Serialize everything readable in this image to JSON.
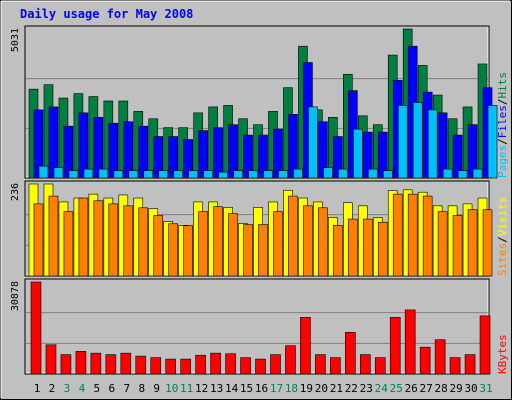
{
  "title": "Daily usage for May 2008",
  "colors": {
    "background": "#C0C0C0",
    "title": "#0000FF",
    "hits": "#008040",
    "files": "#0000FF",
    "pages": "#00C0FF",
    "visits": "#FFFF00",
    "sites": "#FF8000",
    "kbytes": "#FF0000",
    "weekend_label": "#00805C",
    "weekday_label": "#000000"
  },
  "chart_data": [
    {
      "type": "bar",
      "title": "Hits / Files / Pages",
      "y_max_label": "5031",
      "ylim": [
        0,
        5031
      ],
      "legend": [
        {
          "label": "Pages",
          "color": "#00C0FF"
        },
        {
          "label": "/",
          "color": "#000000"
        },
        {
          "label": "Files",
          "color": "#0000FF"
        },
        {
          "label": "/",
          "color": "#000000"
        },
        {
          "label": "Hits",
          "color": "#008040"
        }
      ],
      "categories": [
        "1",
        "2",
        "3",
        "4",
        "5",
        "6",
        "7",
        "8",
        "9",
        "10",
        "11",
        "12",
        "13",
        "14",
        "15",
        "16",
        "17",
        "18",
        "19",
        "20",
        "21",
        "22",
        "23",
        "24",
        "25",
        "26",
        "27",
        "28",
        "29",
        "30",
        "31"
      ],
      "series": [
        {
          "name": "Hits",
          "values": [
            3000,
            3150,
            2700,
            2850,
            2750,
            2600,
            2600,
            2250,
            2000,
            1700,
            1700,
            2200,
            2400,
            2450,
            2000,
            1800,
            2250,
            3050,
            4450,
            2300,
            2050,
            3500,
            2100,
            1800,
            4150,
            5031,
            3800,
            2800,
            2000,
            2400,
            3850
          ]
        },
        {
          "name": "Files",
          "values": [
            2300,
            2400,
            1750,
            2200,
            2050,
            1850,
            1900,
            1750,
            1400,
            1400,
            1300,
            1600,
            1700,
            1800,
            1450,
            1450,
            1650,
            2150,
            3900,
            1900,
            1400,
            2950,
            1550,
            1550,
            3300,
            4450,
            2900,
            2200,
            1450,
            1800,
            3050
          ]
        },
        {
          "name": "Pages",
          "values": [
            400,
            350,
            250,
            300,
            300,
            250,
            250,
            250,
            250,
            250,
            250,
            250,
            200,
            250,
            250,
            250,
            250,
            300,
            2400,
            350,
            300,
            1650,
            300,
            250,
            2450,
            2550,
            2300,
            300,
            250,
            300,
            2450
          ]
        }
      ]
    },
    {
      "type": "bar",
      "title": "Visits / Sites",
      "y_max_label": "236",
      "ylim": [
        0,
        236
      ],
      "legend": [
        {
          "label": "Sites",
          "color": "#FF8000"
        },
        {
          "label": "/",
          "color": "#000000"
        },
        {
          "label": "Visits",
          "color": "#FFFF00"
        }
      ],
      "categories": [
        "1",
        "2",
        "3",
        "4",
        "5",
        "6",
        "7",
        "8",
        "9",
        "10",
        "11",
        "12",
        "13",
        "14",
        "15",
        "16",
        "17",
        "18",
        "19",
        "20",
        "21",
        "22",
        "23",
        "24",
        "25",
        "26",
        "27",
        "28",
        "29",
        "30",
        "31"
      ],
      "series": [
        {
          "name": "Visits",
          "values": [
            236,
            236,
            190,
            200,
            210,
            200,
            208,
            200,
            173,
            140,
            130,
            190,
            190,
            176,
            135,
            176,
            190,
            220,
            200,
            190,
            150,
            188,
            180,
            150,
            219,
            221,
            215,
            180,
            180,
            185,
            200
          ]
        },
        {
          "name": "Sites",
          "values": [
            185,
            205,
            165,
            200,
            193,
            185,
            180,
            175,
            155,
            134,
            129,
            165,
            178,
            160,
            132,
            132,
            165,
            205,
            180,
            175,
            130,
            146,
            146,
            138,
            210,
            210,
            205,
            165,
            155,
            170,
            170
          ]
        }
      ]
    },
    {
      "type": "bar",
      "title": "KBytes",
      "y_max_label": "30878",
      "ylim": [
        0,
        30878
      ],
      "legend": [
        {
          "label": "KBytes",
          "color": "#FF0000"
        }
      ],
      "categories": [
        "1",
        "2",
        "3",
        "4",
        "5",
        "6",
        "7",
        "8",
        "9",
        "10",
        "11",
        "12",
        "13",
        "14",
        "15",
        "16",
        "17",
        "18",
        "19",
        "20",
        "21",
        "22",
        "23",
        "24",
        "25",
        "26",
        "27",
        "28",
        "29",
        "30",
        "31"
      ],
      "series": [
        {
          "name": "KBytes",
          "values": [
            30878,
            9800,
            6500,
            7600,
            7000,
            6500,
            7000,
            6000,
            5500,
            5000,
            5000,
            6300,
            7000,
            6800,
            5500,
            5000,
            6500,
            9500,
            19000,
            6500,
            5500,
            14000,
            6500,
            5500,
            19000,
            21500,
            9000,
            11500,
            5500,
            6500,
            19500
          ]
        }
      ]
    }
  ]
}
